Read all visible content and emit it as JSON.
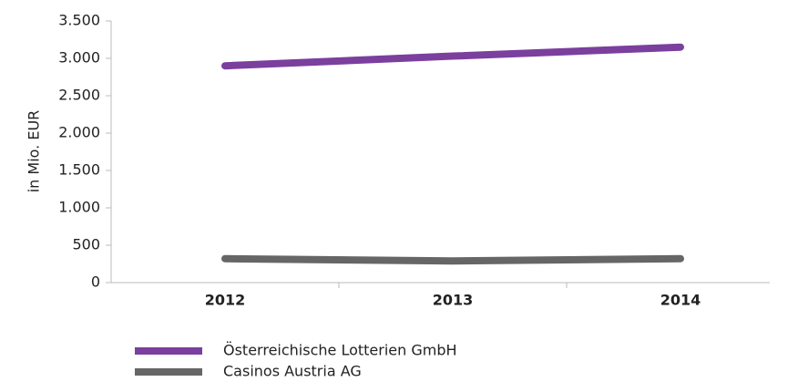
{
  "chart_data": {
    "type": "line",
    "y_label": "in Mio. EUR",
    "categories": [
      "2012",
      "2013",
      "2014"
    ],
    "series": [
      {
        "name": "Österreichische Lotterien GmbH",
        "color": "#7b3f9e",
        "values": [
          2900,
          3030,
          3150
        ]
      },
      {
        "name": "Casinos Austria AG",
        "color": "#666666",
        "values": [
          320,
          290,
          320
        ]
      }
    ],
    "ylim": [
      0,
      3500
    ],
    "yticks": [
      0,
      500,
      {
        "value": 1000,
        "label": "1.000"
      },
      {
        "value": 1500,
        "label": "1.500"
      },
      {
        "value": 2000,
        "label": "2.000"
      },
      {
        "value": 2500,
        "label": "2.500"
      },
      {
        "value": 3000,
        "label": "3.000"
      },
      {
        "value": 3500,
        "label": "3.500"
      }
    ],
    "legend": "bottom"
  }
}
